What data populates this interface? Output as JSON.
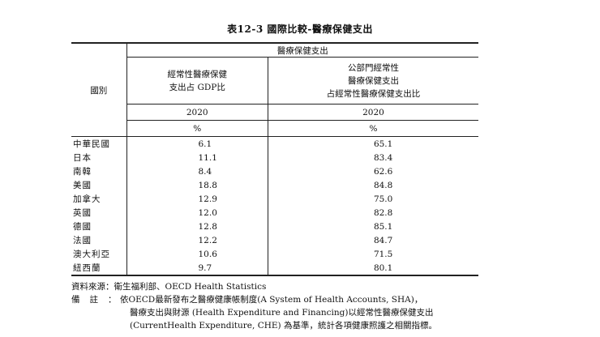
{
  "title": "表12-3  國際比較-醫療保健支出",
  "header": {
    "country_label": "國別",
    "group_label": "醫療保健支出",
    "col1_desc": [
      "經常性醫療保健",
      "支出占 GDP比"
    ],
    "col2_desc": [
      "公部門經常性",
      "醫療保健支出",
      "占經常性醫療保健支出比"
    ],
    "col1_year": "2020",
    "col2_year": "2020",
    "col1_unit": "%",
    "col2_unit": "%"
  },
  "rows": [
    {
      "country": "中華民國",
      "gdp_share": "6.1",
      "public_share": "65.1"
    },
    {
      "country": "日本",
      "gdp_share": "11.1",
      "public_share": "83.4"
    },
    {
      "country": "南韓",
      "gdp_share": "8.4",
      "public_share": "62.6"
    },
    {
      "country": "美國",
      "gdp_share": "18.8",
      "public_share": "84.8"
    },
    {
      "country": "加拿大",
      "gdp_share": "12.9",
      "public_share": "75.0"
    },
    {
      "country": "英國",
      "gdp_share": "12.0",
      "public_share": "82.8"
    },
    {
      "country": "德國",
      "gdp_share": "12.8",
      "public_share": "85.1"
    },
    {
      "country": "法國",
      "gdp_share": "12.2",
      "public_share": "84.7"
    },
    {
      "country": "澳大利亞",
      "gdp_share": "10.6",
      "public_share": "71.5"
    },
    {
      "country": "紐西蘭",
      "gdp_share": "9.7",
      "public_share": "80.1"
    }
  ],
  "notes": {
    "source_label": "資料來源：",
    "source_text": "衛生福利部、OECD Health Statistics",
    "note_label": "備註：",
    "note_lines": [
      "依OECD最新發布之醫療健康帳制度(A System of Health Accounts, SHA)，",
      "醫療支出與財源 (Health Expenditure and  Financing)以經常性醫療保健支出",
      "(CurrentHealth Expenditure, CHE) 為基準，統計各項健康照護之相關指標。"
    ]
  }
}
